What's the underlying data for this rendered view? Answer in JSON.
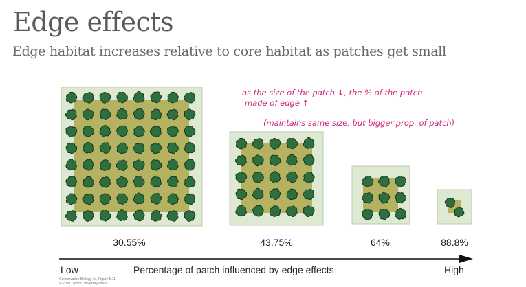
{
  "title": "Edge effects",
  "subtitle": "Edge habitat increases relative to core habitat as patches get small",
  "annotation": {
    "line1": "as the size of the patch ↓, the % of the patch",
    "line2": "made of edge ↑",
    "line3": "(maintains same size, but bigger prop. of patch)"
  },
  "patches": [
    {
      "percent_label": "30.55%",
      "edge_fraction": 0.3055
    },
    {
      "percent_label": "43.75%",
      "edge_fraction": 0.4375
    },
    {
      "percent_label": "64%",
      "edge_fraction": 0.64
    },
    {
      "percent_label": "88.8%",
      "edge_fraction": 0.888
    }
  ],
  "axis": {
    "low_label": "Low",
    "title": "Percentage of patch influenced by edge effects",
    "high_label": "High"
  },
  "credit": {
    "line1": "Conservation Biology 1e, Figure 5.11",
    "line2": "© 2020 Oxford University Press"
  },
  "colors": {
    "edge_fill": "#dde9d2",
    "edge_stroke": "#b9cdaa",
    "core_fill": "#b5b262",
    "tree_fill": "#2e6e3f",
    "tree_stroke": "#11331c",
    "title_text": "#5a5a5a",
    "annotation": "#d0267a"
  },
  "icons": [
    "tree-icon",
    "arrow-right-icon"
  ]
}
